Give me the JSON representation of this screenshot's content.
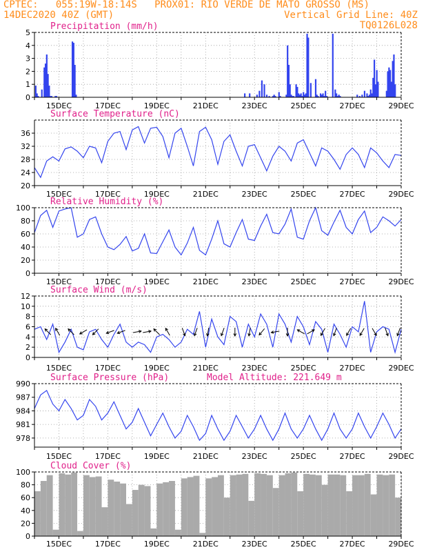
{
  "header": {
    "line1_left": "CPTEC:   055:19W-18:14S   PROX01: RIO VERDE DE MATO GROSSO (MS)",
    "line2_left": "14DEC2020 40Z (GMT)",
    "line2_right": "Vertical Grid Line: 40Z",
    "line3_right": "TQ0126L028"
  },
  "colors": {
    "header": "#ff8c1a",
    "title": "#e0208a",
    "series": "#3344ee",
    "cloud": "#aaaaaa"
  },
  "chart_data": [
    {
      "type": "bar",
      "title": "Precipitation (mm/h)",
      "ylim": [
        0,
        5
      ],
      "yticks": [
        "0",
        "1",
        "2",
        "3",
        "4",
        "5"
      ],
      "x_range_days": [
        14,
        29
      ],
      "xticks": [
        "15DEC",
        "17DEC",
        "19DEC",
        "21DEC",
        "23DEC",
        "25DEC",
        "27DEC",
        "29DEC"
      ],
      "x": [
        14.05,
        14.1,
        14.15,
        14.3,
        14.4,
        14.45,
        14.5,
        14.55,
        14.6,
        14.65,
        14.7,
        14.85,
        14.9,
        15.55,
        15.6,
        15.65,
        15.7,
        22.6,
        22.8,
        23.1,
        23.2,
        23.3,
        23.4,
        23.5,
        23.6,
        23.75,
        23.8,
        23.85,
        24.0,
        24.05,
        24.3,
        24.35,
        24.4,
        24.45,
        24.5,
        24.55,
        24.6,
        24.7,
        24.75,
        24.8,
        24.85,
        24.9,
        24.95,
        25.0,
        25.05,
        25.1,
        25.15,
        25.2,
        25.3,
        25.5,
        25.55,
        25.6,
        25.7,
        25.75,
        25.8,
        25.85,
        25.9,
        25.95,
        26.2,
        26.3,
        26.35,
        26.4,
        26.45,
        26.5,
        27.2,
        27.3,
        27.4,
        27.5,
        27.6,
        27.65,
        27.7,
        27.75,
        27.8,
        27.85,
        27.9,
        27.95,
        28.0,
        28.05,
        28.4,
        28.45,
        28.5,
        28.55,
        28.6,
        28.65,
        28.7,
        28.75
      ],
      "values": [
        0.9,
        0.3,
        0.1,
        0.6,
        2.3,
        2.6,
        3.3,
        1.8,
        0.9,
        0.1,
        0.1,
        0.1,
        0.1,
        4.3,
        4.2,
        2.5,
        0.2,
        0.3,
        0.3,
        0.2,
        0.5,
        1.3,
        1.0,
        0.2,
        0.1,
        0.1,
        0.2,
        0.1,
        0.4,
        0.1,
        0.2,
        4.0,
        2.5,
        1.0,
        0.2,
        0.1,
        0.1,
        1.0,
        0.8,
        0.3,
        0.2,
        0.3,
        0.1,
        0.4,
        0.2,
        0.3,
        4.9,
        4.6,
        1.1,
        1.4,
        0.2,
        0.1,
        0.3,
        0.2,
        0.3,
        0.1,
        0.5,
        0.1,
        4.9,
        0.6,
        0.3,
        0.1,
        0.2,
        0.1,
        0.2,
        0.1,
        0.2,
        0.5,
        0.3,
        0.1,
        0.2,
        0.6,
        0.3,
        1.5,
        2.9,
        1.0,
        2.1,
        1.2,
        0.5,
        2.0,
        2.3,
        2.1,
        1.2,
        2.8,
        3.3,
        1.0
      ]
    },
    {
      "type": "line",
      "title": "Surface Temperature (nC)",
      "ylim": [
        20,
        40
      ],
      "yticks": [
        "20",
        "24",
        "28",
        "32",
        "36"
      ],
      "x_range_days": [
        14,
        29
      ],
      "xticks": [
        "15DEC",
        "17DEC",
        "19DEC",
        "21DEC",
        "23DEC",
        "25DEC",
        "27DEC",
        "29DEC"
      ],
      "x": [
        14.0,
        14.25,
        14.5,
        14.75,
        15.0,
        15.25,
        15.5,
        15.75,
        16.0,
        16.25,
        16.5,
        16.75,
        17.0,
        17.25,
        17.5,
        17.75,
        18.0,
        18.25,
        18.5,
        18.75,
        19.0,
        19.25,
        19.5,
        19.75,
        20.0,
        20.25,
        20.5,
        20.75,
        21.0,
        21.25,
        21.5,
        21.75,
        22.0,
        22.25,
        22.5,
        22.75,
        23.0,
        23.25,
        23.5,
        23.75,
        24.0,
        24.25,
        24.5,
        24.75,
        25.0,
        25.25,
        25.5,
        25.75,
        26.0,
        26.25,
        26.5,
        26.75,
        27.0,
        27.25,
        27.5,
        27.75,
        28.0,
        28.25,
        28.5,
        28.75,
        29.0
      ],
      "values": [
        25.5,
        22.5,
        27.5,
        28.8,
        27.5,
        31.2,
        31.8,
        30.5,
        28.5,
        32.0,
        31.5,
        27.0,
        33.5,
        36.0,
        36.5,
        31.0,
        37.0,
        38.0,
        33.0,
        37.5,
        37.8,
        35.0,
        28.5,
        36.0,
        37.5,
        32.0,
        26.0,
        36.5,
        37.8,
        34.0,
        26.5,
        33.5,
        35.5,
        30.5,
        26.0,
        32.0,
        32.5,
        28.5,
        24.5,
        29.0,
        32.0,
        30.5,
        27.5,
        33.0,
        34.0,
        30.0,
        26.0,
        31.5,
        30.5,
        28.0,
        25.0,
        29.5,
        31.5,
        29.5,
        25.5,
        31.5,
        30.0,
        27.5,
        25.5,
        29.5,
        29.2
      ]
    },
    {
      "type": "line",
      "title": "Relative Humidity (%)",
      "ylim": [
        0,
        100
      ],
      "yticks": [
        "0",
        "20",
        "40",
        "60",
        "80",
        "100"
      ],
      "x_range_days": [
        14,
        29
      ],
      "xticks": [
        "15DEC",
        "17DEC",
        "19DEC",
        "21DEC",
        "23DEC",
        "25DEC",
        "27DEC",
        "29DEC"
      ],
      "x": [
        14.0,
        14.25,
        14.5,
        14.75,
        15.0,
        15.25,
        15.5,
        15.75,
        16.0,
        16.25,
        16.5,
        16.75,
        17.0,
        17.25,
        17.5,
        17.75,
        18.0,
        18.25,
        18.5,
        18.75,
        19.0,
        19.25,
        19.5,
        19.75,
        20.0,
        20.25,
        20.5,
        20.75,
        21.0,
        21.25,
        21.5,
        21.75,
        22.0,
        22.25,
        22.5,
        22.75,
        23.0,
        23.25,
        23.5,
        23.75,
        24.0,
        24.25,
        24.5,
        24.75,
        25.0,
        25.25,
        25.5,
        25.75,
        26.0,
        26.25,
        26.5,
        26.75,
        27.0,
        27.25,
        27.5,
        27.75,
        28.0,
        28.25,
        28.5,
        28.75,
        29.0
      ],
      "values": [
        62,
        88,
        96,
        70,
        95,
        98,
        100,
        55,
        60,
        82,
        86,
        60,
        40,
        36,
        44,
        56,
        34,
        38,
        60,
        31,
        30,
        48,
        66,
        40,
        28,
        46,
        70,
        35,
        28,
        52,
        80,
        45,
        40,
        62,
        82,
        52,
        50,
        72,
        90,
        62,
        60,
        75,
        98,
        55,
        52,
        80,
        100,
        65,
        58,
        78,
        96,
        70,
        60,
        82,
        95,
        62,
        70,
        86,
        80,
        72,
        82
      ]
    },
    {
      "type": "line",
      "title": "Surface Wind (m/s)",
      "ylim": [
        0,
        12
      ],
      "yticks": [
        "0",
        "2",
        "4",
        "6",
        "8",
        "10",
        "12"
      ],
      "x_range_days": [
        14,
        29
      ],
      "xticks": [
        "15DEC",
        "17DEC",
        "19DEC",
        "21DEC",
        "23DEC",
        "25DEC",
        "27DEC",
        "29DEC"
      ],
      "x": [
        14.0,
        14.25,
        14.5,
        14.75,
        15.0,
        15.25,
        15.5,
        15.75,
        16.0,
        16.25,
        16.5,
        16.75,
        17.0,
        17.25,
        17.5,
        17.75,
        18.0,
        18.25,
        18.5,
        18.75,
        19.0,
        19.25,
        19.5,
        19.75,
        20.0,
        20.25,
        20.5,
        20.75,
        21.0,
        21.25,
        21.5,
        21.75,
        22.0,
        22.25,
        22.5,
        22.75,
        23.0,
        23.25,
        23.5,
        23.75,
        24.0,
        24.25,
        24.5,
        24.75,
        25.0,
        25.25,
        25.5,
        25.75,
        26.0,
        26.25,
        26.5,
        26.75,
        27.0,
        27.25,
        27.5,
        27.75,
        28.0,
        28.25,
        28.5,
        28.75,
        29.0
      ],
      "values": [
        5.5,
        6.0,
        3.5,
        6.5,
        1.0,
        3.0,
        5.5,
        2.0,
        1.5,
        5.0,
        5.5,
        3.5,
        2.0,
        4.5,
        6.5,
        3.0,
        2.0,
        3.0,
        2.5,
        1.0,
        4.0,
        4.5,
        3.5,
        2.0,
        3.0,
        5.5,
        4.5,
        9.0,
        2.0,
        7.5,
        4.0,
        2.5,
        8.0,
        7.0,
        2.0,
        6.5,
        4.0,
        8.5,
        6.5,
        2.0,
        8.5,
        6.5,
        3.0,
        8.0,
        6.0,
        2.5,
        7.0,
        5.5,
        1.0,
        6.5,
        4.5,
        2.0,
        6.0,
        5.0,
        11.0,
        1.0,
        5.0,
        6.0,
        5.5,
        1.0,
        5.5
      ],
      "wind_arrows": [
        {
          "day": 14.55,
          "dir_deg": 315
        },
        {
          "day": 14.95,
          "dir_deg": 330
        },
        {
          "day": 15.5,
          "dir_deg": 315
        },
        {
          "day": 16.0,
          "dir_deg": 240
        },
        {
          "day": 16.5,
          "dir_deg": 225
        },
        {
          "day": 17.1,
          "dir_deg": 250
        },
        {
          "day": 17.55,
          "dir_deg": 250
        },
        {
          "day": 18.2,
          "dir_deg": 80
        },
        {
          "day": 18.6,
          "dir_deg": 80
        },
        {
          "day": 19.0,
          "dir_deg": 315
        },
        {
          "day": 19.45,
          "dir_deg": 330
        },
        {
          "day": 20.1,
          "dir_deg": 160
        },
        {
          "day": 20.6,
          "dir_deg": 200
        },
        {
          "day": 21.1,
          "dir_deg": 190
        },
        {
          "day": 21.7,
          "dir_deg": 200
        },
        {
          "day": 22.2,
          "dir_deg": 180
        },
        {
          "day": 22.8,
          "dir_deg": 190
        },
        {
          "day": 23.3,
          "dir_deg": 220
        },
        {
          "day": 23.85,
          "dir_deg": 260
        },
        {
          "day": 24.35,
          "dir_deg": 180
        },
        {
          "day": 24.9,
          "dir_deg": 300
        },
        {
          "day": 25.3,
          "dir_deg": 60
        },
        {
          "day": 25.8,
          "dir_deg": 210
        },
        {
          "day": 26.3,
          "dir_deg": 200
        },
        {
          "day": 26.85,
          "dir_deg": 210
        },
        {
          "day": 27.4,
          "dir_deg": 210
        },
        {
          "day": 27.9,
          "dir_deg": 150
        },
        {
          "day": 28.4,
          "dir_deg": 160
        },
        {
          "day": 28.9,
          "dir_deg": 200
        }
      ]
    },
    {
      "type": "line",
      "title": "Surface Pressure (hPa)",
      "annotation": "Model Altitude: 221.649 m",
      "ylim": [
        976,
        990
      ],
      "yticks": [
        "978",
        "981",
        "984",
        "987",
        "990"
      ],
      "x_range_days": [
        14,
        29
      ],
      "xticks": [
        "15DEC",
        "17DEC",
        "19DEC",
        "21DEC",
        "23DEC",
        "25DEC",
        "27DEC",
        "29DEC"
      ],
      "x": [
        14.0,
        14.25,
        14.5,
        14.75,
        15.0,
        15.25,
        15.5,
        15.75,
        16.0,
        16.25,
        16.5,
        16.75,
        17.0,
        17.25,
        17.5,
        17.75,
        18.0,
        18.25,
        18.5,
        18.75,
        19.0,
        19.25,
        19.5,
        19.75,
        20.0,
        20.25,
        20.5,
        20.75,
        21.0,
        21.25,
        21.5,
        21.75,
        22.0,
        22.25,
        22.5,
        22.75,
        23.0,
        23.25,
        23.5,
        23.75,
        24.0,
        24.25,
        24.5,
        24.75,
        25.0,
        25.25,
        25.5,
        25.75,
        26.0,
        26.25,
        26.5,
        26.75,
        27.0,
        27.25,
        27.5,
        27.75,
        28.0,
        28.25,
        28.5,
        28.75,
        29.0
      ],
      "values": [
        984.5,
        987.5,
        988.5,
        985.5,
        984.0,
        986.5,
        984.5,
        982.0,
        983.0,
        986.5,
        985.0,
        982.0,
        983.5,
        986.0,
        983.0,
        980.0,
        981.5,
        984.5,
        981.5,
        978.5,
        981.0,
        983.5,
        980.5,
        978.0,
        979.5,
        983.0,
        980.5,
        977.5,
        979.0,
        983.0,
        980.0,
        977.5,
        979.5,
        983.0,
        980.5,
        978.0,
        980.0,
        983.0,
        980.0,
        977.5,
        980.0,
        983.5,
        980.0,
        978.0,
        980.0,
        983.0,
        980.0,
        977.5,
        980.0,
        983.5,
        980.0,
        978.0,
        980.0,
        983.5,
        980.5,
        978.0,
        980.5,
        983.5,
        981.0,
        978.0,
        980.0
      ]
    },
    {
      "type": "bar",
      "title": "Cloud Cover (%)",
      "ylim": [
        0,
        100
      ],
      "yticks": [
        "0",
        "20",
        "40",
        "60",
        "80",
        "100"
      ],
      "x_range_days": [
        14,
        29
      ],
      "xticks": [
        "15DEC",
        "17DEC",
        "19DEC",
        "21DEC",
        "23DEC",
        "25DEC",
        "27DEC",
        "29DEC"
      ],
      "x": [
        14.0,
        14.25,
        14.5,
        14.75,
        15.0,
        15.25,
        15.5,
        15.75,
        16.0,
        16.25,
        16.5,
        16.75,
        17.0,
        17.25,
        17.5,
        17.75,
        18.0,
        18.25,
        18.5,
        18.75,
        19.0,
        19.25,
        19.5,
        19.75,
        20.0,
        20.25,
        20.5,
        20.75,
        21.0,
        21.25,
        21.5,
        21.75,
        22.0,
        22.25,
        22.5,
        22.75,
        23.0,
        23.25,
        23.5,
        23.75,
        24.0,
        24.25,
        24.5,
        24.75,
        25.0,
        25.25,
        25.5,
        25.75,
        26.0,
        26.25,
        26.5,
        26.75,
        27.0,
        27.25,
        27.5,
        27.75,
        28.0,
        28.25,
        28.5,
        28.75,
        29.0
      ],
      "values": [
        70,
        86,
        95,
        10,
        98,
        96,
        99,
        8,
        95,
        92,
        93,
        45,
        88,
        85,
        82,
        50,
        72,
        80,
        78,
        12,
        82,
        84,
        86,
        10,
        90,
        92,
        94,
        5,
        90,
        92,
        95,
        60,
        95,
        96,
        97,
        55,
        98,
        97,
        95,
        75,
        95,
        98,
        99,
        70,
        97,
        96,
        95,
        80,
        96,
        96,
        95,
        70,
        95,
        95,
        97,
        65,
        96,
        95,
        96,
        60,
        92
      ]
    }
  ]
}
